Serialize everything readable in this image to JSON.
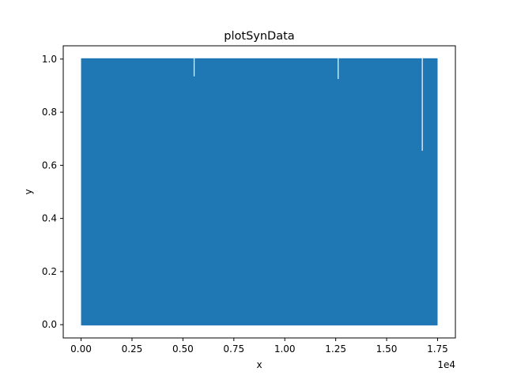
{
  "chart_data": {
    "type": "line",
    "title": "plotSynData",
    "xlabel": "x",
    "ylabel": "y",
    "x_offset_label": "1e4",
    "xlim": [
      -0.0875,
      1.8375
    ],
    "ylim": [
      -0.05,
      1.05
    ],
    "x_ticks": [
      0.0,
      0.25,
      0.5,
      0.75,
      1.0,
      1.25,
      1.5,
      1.75
    ],
    "x_tick_labels": [
      "0.00",
      "0.25",
      "0.50",
      "0.75",
      "1.00",
      "1.25",
      "1.50",
      "1.75"
    ],
    "y_ticks": [
      0.0,
      0.2,
      0.4,
      0.6,
      0.8,
      1.0
    ],
    "y_tick_labels": [
      "0.0",
      "0.2",
      "0.4",
      "0.6",
      "0.8",
      "1.0"
    ],
    "grid": false,
    "series": [
      {
        "color": "#1f77b4",
        "x_range": [
          0,
          1.75
        ],
        "y_range": [
          0.0,
          1.0
        ],
        "gaps": [
          {
            "x": 0.555,
            "y_low": 0.935,
            "y_high": 1.0
          },
          {
            "x": 1.262,
            "y_low": 0.925,
            "y_high": 1.0
          },
          {
            "x": 1.675,
            "y_low": 0.655,
            "y_high": 1.0
          }
        ]
      }
    ]
  }
}
